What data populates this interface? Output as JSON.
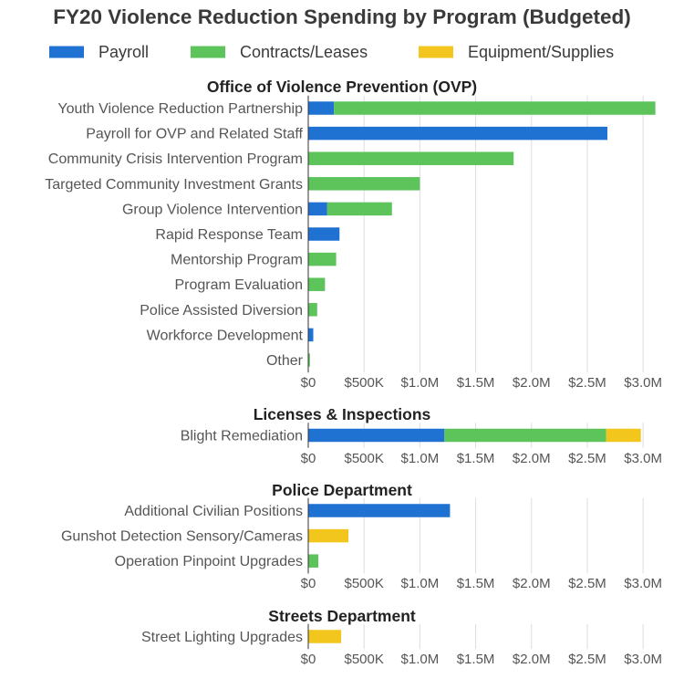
{
  "chart_data": {
    "type": "bar",
    "orientation": "horizontal",
    "stacked": true,
    "title": "FY20 Violence Reduction Spending by Program (Budgeted)",
    "legend_position": "top",
    "grid": true,
    "series": [
      {
        "name": "Payroll",
        "color": "#2072d2"
      },
      {
        "name": "Contracts/Leases",
        "color": "#5cc45a"
      },
      {
        "name": "Equipment/Supplies",
        "color": "#f2c61c"
      }
    ],
    "xlim": [
      0,
      3150000
    ],
    "ticks": [
      0,
      500000,
      1000000,
      1500000,
      2000000,
      2500000,
      3000000
    ],
    "tick_labels": [
      "$0",
      "$500K",
      "$1.0M",
      "$1.5M",
      "$2.0M",
      "$2.5M",
      "$3.0M"
    ],
    "panels": [
      {
        "title": "Office of Violence Prevention (OVP)",
        "categories": [
          "Youth Violence Reduction Partnership",
          "Payroll for OVP and Related Staff",
          "Community Crisis Intervention Program",
          "Targeted Community Investment Grants",
          "Group Violence Intervention",
          "Rapid Response Team",
          "Mentorship Program",
          "Program Evaluation",
          "Police Assisted Diversion",
          "Workforce Development",
          "Other"
        ],
        "values": {
          "Payroll": [
            230000,
            2680000,
            0,
            0,
            170000,
            280000,
            0,
            0,
            0,
            45000,
            0
          ],
          "Contracts/Leases": [
            2880000,
            0,
            1840000,
            1000000,
            580000,
            0,
            250000,
            150000,
            80000,
            0,
            15000
          ],
          "Equipment/Supplies": [
            0,
            0,
            0,
            0,
            0,
            0,
            0,
            0,
            0,
            0,
            0
          ]
        }
      },
      {
        "title": "Licenses & Inspections",
        "categories": [
          "Blight Remediation"
        ],
        "values": {
          "Payroll": [
            1220000
          ],
          "Contracts/Leases": [
            1450000
          ],
          "Equipment/Supplies": [
            310000
          ]
        }
      },
      {
        "title": "Police Department",
        "categories": [
          "Additional Civilian Positions",
          "Gunshot Detection Sensory/Cameras",
          "Operation Pinpoint Upgrades"
        ],
        "values": {
          "Payroll": [
            1270000,
            0,
            0
          ],
          "Contracts/Leases": [
            0,
            0,
            90000
          ],
          "Equipment/Supplies": [
            0,
            360000,
            0
          ]
        }
      },
      {
        "title": "Streets Department",
        "categories": [
          "Street Lighting Upgrades"
        ],
        "values": {
          "Payroll": [
            0
          ],
          "Contracts/Leases": [
            0
          ],
          "Equipment/Supplies": [
            295000
          ]
        }
      }
    ]
  }
}
